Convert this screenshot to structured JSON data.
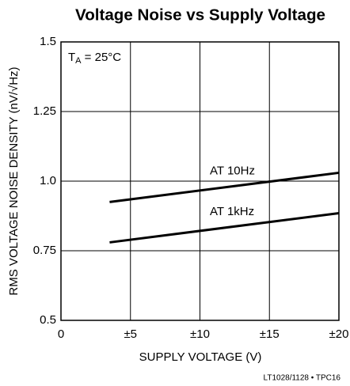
{
  "chart_data": {
    "type": "line",
    "title": "Voltage Noise vs Supply Voltage",
    "xlabel": "SUPPLY VOLTAGE (V)",
    "ylabel": "RMS VOLTAGE NOISE DENSITY (nV/√Hz)",
    "annotation": {
      "main": "T",
      "sub": "A",
      "rest": " = 25°C"
    },
    "footnote": "LT1028/1128 • TPC16",
    "x": [
      3.5,
      20
    ],
    "series": [
      {
        "name": "AT 10Hz",
        "color": "#000000",
        "values": [
          0.925,
          1.03
        ]
      },
      {
        "name": "AT 1kHz",
        "color": "#000000",
        "values": [
          0.78,
          0.885
        ]
      }
    ],
    "xlim": [
      0,
      20
    ],
    "xticks": [
      0,
      {
        "value": 5,
        "label": "±5"
      },
      {
        "value": 10,
        "label": "±10"
      },
      {
        "value": 15,
        "label": "±15"
      },
      {
        "value": 20,
        "label": "±20"
      }
    ],
    "ylim": [
      0.5,
      1.5
    ],
    "yticks": [
      0.5,
      0.75,
      {
        "value": 1,
        "label": "1.0"
      },
      1.25,
      1.5
    ],
    "grid": true
  }
}
